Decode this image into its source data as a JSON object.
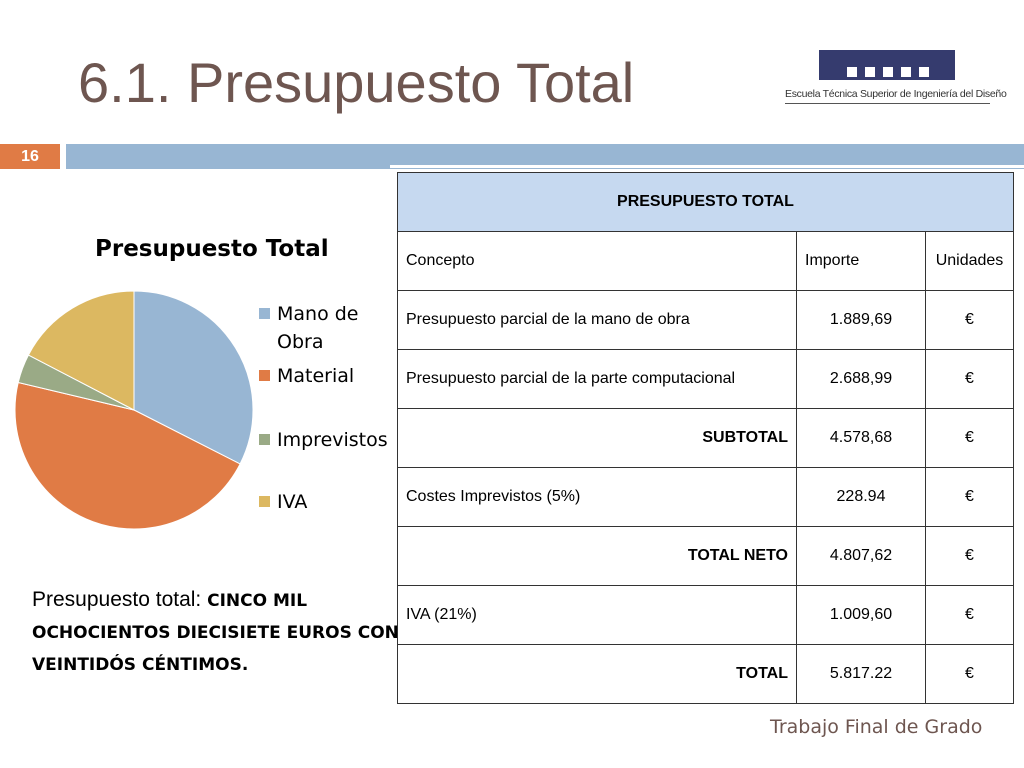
{
  "slide": {
    "title": "6.1. Presupuesto Total",
    "number": "16",
    "footer": "Trabajo Final de Grado"
  },
  "logo": {
    "text": "Escuela Técnica Superior de Ingeniería del Diseño"
  },
  "chart_data": {
    "type": "pie",
    "title": "Presupuesto Total",
    "categories": [
      "Mano de Obra",
      "Material",
      "Imprevistos",
      "IVA"
    ],
    "values": [
      1889.69,
      2688.99,
      228.94,
      1009.6
    ],
    "colors": [
      "#98b6d3",
      "#e07b45",
      "#9aaa86",
      "#dcb861"
    ],
    "legend_position": "right"
  },
  "summary": {
    "lead": "Presupuesto total: ",
    "amount_text": "CINCO MIL OCHOCIENTOS DIECISIETE EUROS CON VEINTIDÓS CÉNTIMOS."
  },
  "table": {
    "title": "PRESUPUESTO TOTAL",
    "headers": [
      "Concepto",
      "Importe",
      "Unidades"
    ],
    "rows": [
      {
        "concepto": "Presupuesto parcial de la mano de obra",
        "importe": "1.889,69",
        "unidades": "€",
        "bold": false
      },
      {
        "concepto": "Presupuesto parcial de la parte computacional",
        "importe": "2.688,99",
        "unidades": "€",
        "bold": false
      },
      {
        "concepto": "SUBTOTAL",
        "importe": "4.578,68",
        "unidades": "€",
        "bold": true
      },
      {
        "concepto": "Costes Imprevistos (5%)",
        "importe": "228.94",
        "unidades": "€",
        "bold": false
      },
      {
        "concepto": "TOTAL NETO",
        "importe": "4.807,62",
        "unidades": "€",
        "bold": true
      },
      {
        "concepto": "IVA (21%)",
        "importe": "1.009,60",
        "unidades": "€",
        "bold": false
      },
      {
        "concepto": "TOTAL",
        "importe": "5.817.22",
        "unidades": "€",
        "bold": true
      }
    ]
  }
}
